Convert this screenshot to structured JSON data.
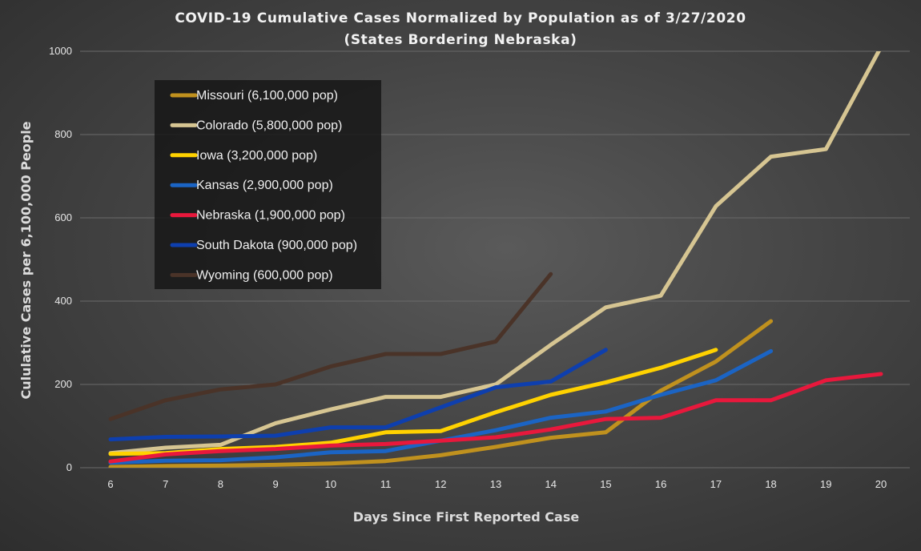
{
  "chart_data": {
    "type": "line",
    "title": "COVID-19 Cumulative Cases Normalized by Population as of 3/27/2020",
    "subtitle": "(States Bordering Nebraska)",
    "xlabel": "Days Since First Reported Case",
    "ylabel": "Cululative Cases per 6,100,000 People",
    "xlim": [
      6,
      20
    ],
    "ylim": [
      0,
      1000
    ],
    "x_ticks": [
      6,
      7,
      8,
      9,
      10,
      11,
      12,
      13,
      14,
      15,
      16,
      17,
      18,
      19,
      20
    ],
    "y_ticks": [
      0,
      200,
      400,
      600,
      800,
      1000
    ],
    "grid": true,
    "legend_position": "top-left",
    "series": [
      {
        "name": "Missouri (6,100,000 pop)",
        "color": "#c0911e",
        "x": [
          6,
          7,
          8,
          9,
          10,
          11,
          12,
          13,
          14,
          15,
          16,
          17,
          18
        ],
        "values": [
          2,
          4,
          5,
          7,
          10,
          16,
          30,
          50,
          72,
          85,
          185,
          255,
          352
        ]
      },
      {
        "name": "Colorado (5,800,000 pop)",
        "color": "#d6c592",
        "x": [
          6,
          7,
          8,
          9,
          10,
          11,
          12,
          13,
          14,
          15,
          16,
          17,
          18,
          19,
          20
        ],
        "values": [
          35,
          48,
          55,
          107,
          140,
          170,
          170,
          200,
          295,
          385,
          413,
          628,
          747,
          765,
          1010
        ]
      },
      {
        "name": "Iowa (3,200,000 pop)",
        "color": "#ffd200",
        "x": [
          6,
          7,
          8,
          9,
          10,
          11,
          12,
          13,
          14,
          15,
          16,
          17
        ],
        "values": [
          33,
          35,
          45,
          50,
          60,
          85,
          88,
          133,
          175,
          205,
          240,
          283
        ]
      },
      {
        "name": "Kansas (2,900,000 pop)",
        "color": "#1b64c4",
        "x": [
          6,
          7,
          8,
          9,
          10,
          11,
          12,
          13,
          14,
          15,
          16,
          17,
          18
        ],
        "values": [
          12,
          17,
          18,
          25,
          37,
          40,
          65,
          90,
          120,
          135,
          175,
          210,
          280
        ]
      },
      {
        "name": "Nebraska (1,900,000 pop)",
        "color": "#e8183c",
        "x": [
          6,
          7,
          8,
          9,
          10,
          11,
          12,
          13,
          14,
          15,
          16,
          17,
          18,
          19,
          20
        ],
        "values": [
          15,
          32,
          40,
          45,
          53,
          57,
          65,
          73,
          92,
          117,
          120,
          162,
          162,
          210,
          225
        ]
      },
      {
        "name": "South Dakota (900,000 pop)",
        "color": "#0e3fae",
        "x": [
          6,
          7,
          8,
          9,
          10,
          11,
          12,
          13,
          14,
          15
        ],
        "values": [
          68,
          74,
          75,
          77,
          97,
          97,
          145,
          193,
          207,
          283
        ]
      },
      {
        "name": "Wyoming (600,000 pop)",
        "color": "#4a3328",
        "x": [
          6,
          7,
          8,
          9,
          10,
          11,
          12,
          13,
          14
        ],
        "values": [
          117,
          162,
          188,
          200,
          243,
          273,
          273,
          303,
          465
        ]
      }
    ]
  }
}
